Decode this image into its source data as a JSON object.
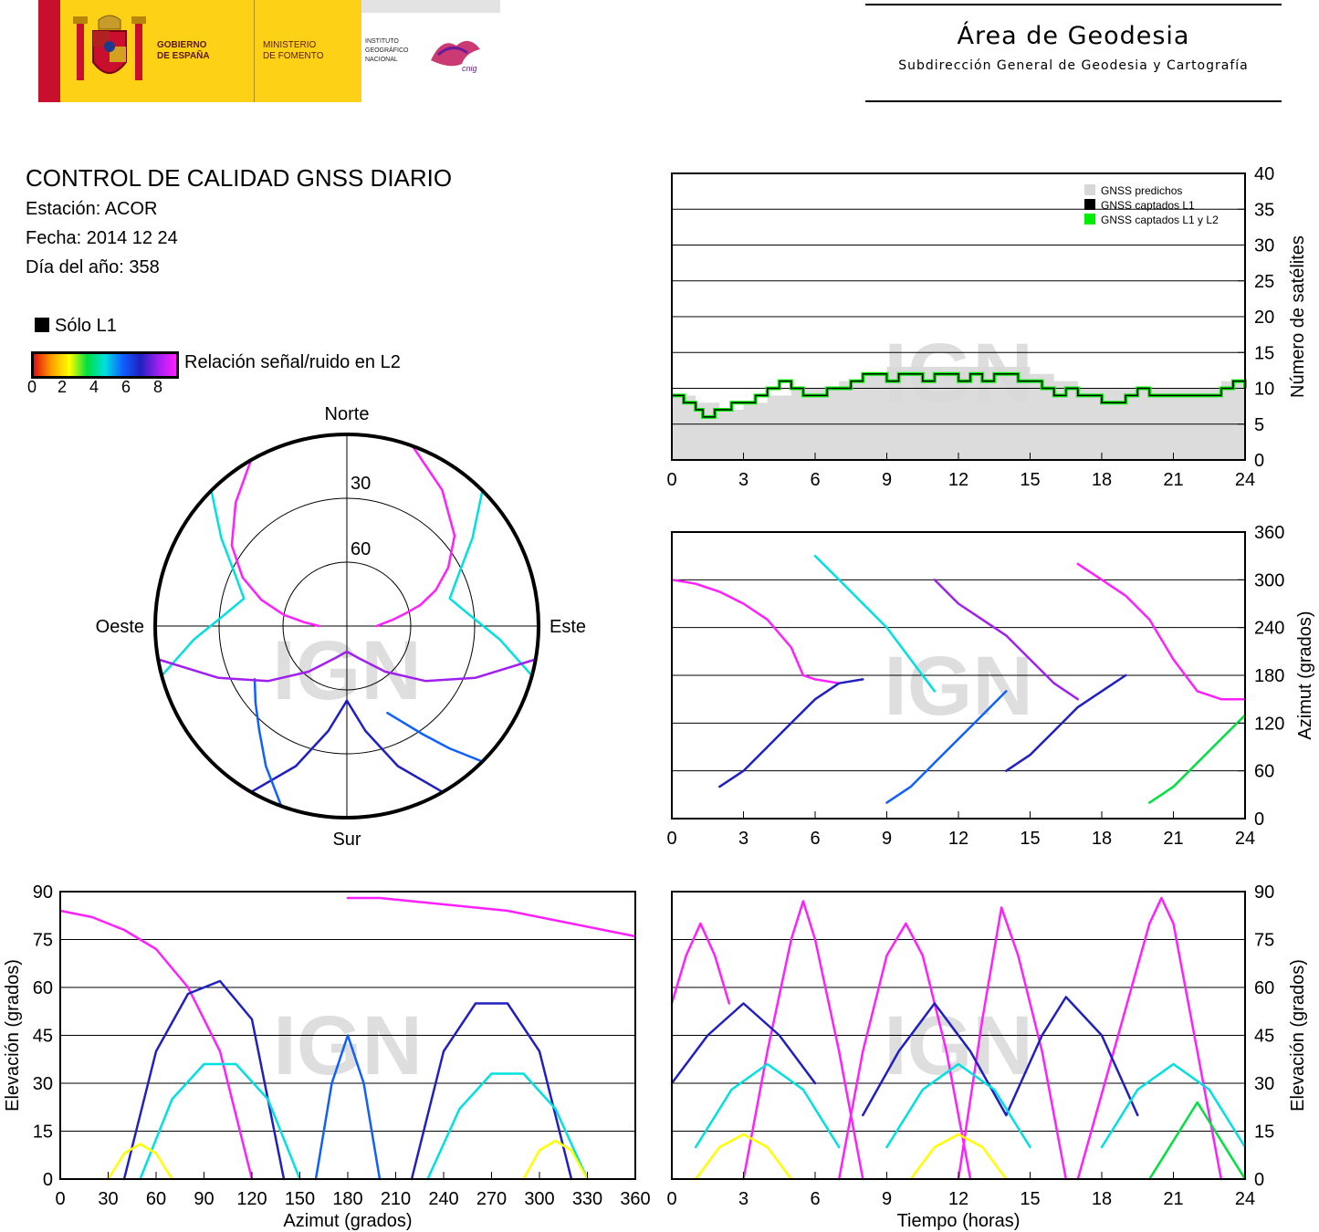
{
  "header": {
    "gov_line1": "GOBIERNO",
    "gov_line2": "DE ESPAÑA",
    "min_line1": "MINISTERIO",
    "min_line2": "DE FOMENTO",
    "ign_line1": "INSTITUTO",
    "ign_line2": "GEOGRÁFICO",
    "ign_line3": "NACIONAL",
    "cnig_logo": "cnig",
    "area_title": "Área de Geodesia",
    "area_subtitle": "Subdirección General de Geodesia y Cartografía"
  },
  "report": {
    "title": "CONTROL DE CALIDAD GNSS DIARIO",
    "station": "Estación: ACOR",
    "date": "Fecha: 2014 12 24",
    "doy": "Día del año: 358"
  },
  "legend": {
    "solo_l1": "Sólo L1",
    "snr_label": "Relación señal/ruido en L2",
    "snr_ticks": [
      "0",
      "2",
      "4",
      "6",
      "8"
    ],
    "snr_colors": [
      "#e01010",
      "#ffa000",
      "#ffff00",
      "#00e040",
      "#00e0e0",
      "#1060ff",
      "#2020c0",
      "#a020f0",
      "#ff20ff"
    ]
  },
  "watermark": "IGN",
  "chart_data": [
    {
      "id": "satellites",
      "type": "area",
      "ylabel": "Número de satélites",
      "x_ticks": [
        "0",
        "3",
        "6",
        "9",
        "12",
        "15",
        "18",
        "21",
        "24"
      ],
      "y_ticks": [
        "0",
        "5",
        "10",
        "15",
        "20",
        "25",
        "30",
        "35",
        "40"
      ],
      "xlim": [
        0,
        24
      ],
      "ylim": [
        0,
        40
      ],
      "grid": true,
      "legend_position": "top-right",
      "series": [
        {
          "name": "GNSS predichos",
          "color": "#d8d8d8",
          "x": [
            0,
            1,
            2,
            3,
            4,
            5,
            6,
            7,
            8,
            9,
            10,
            11,
            12,
            13,
            14,
            15,
            16,
            17,
            18,
            19,
            20,
            21,
            22,
            23,
            24
          ],
          "values": [
            9,
            8,
            7,
            8,
            9,
            10,
            10,
            11,
            12,
            13,
            13,
            13,
            13,
            13,
            13,
            12,
            11,
            10,
            10,
            10,
            10,
            10,
            10,
            11,
            10
          ]
        },
        {
          "name": "GNSS captados L1",
          "color": "#000000",
          "x": [
            0,
            0.5,
            1,
            1.3,
            1.8,
            2.5,
            3,
            3.5,
            4,
            4.5,
            5,
            5.5,
            6,
            6.5,
            7,
            7.5,
            8,
            8.5,
            9,
            9.5,
            10,
            10.5,
            11,
            11.5,
            12,
            12.5,
            13,
            13.5,
            14,
            14.5,
            15,
            15.5,
            16,
            16.5,
            17,
            17.5,
            18,
            18.5,
            19,
            19.5,
            20,
            20.5,
            21,
            21.5,
            22,
            22.5,
            23,
            23.5,
            24
          ],
          "values": [
            9,
            8,
            7,
            6,
            7,
            8,
            8,
            9,
            10,
            11,
            10,
            9,
            9,
            10,
            10,
            11,
            12,
            12,
            11,
            12,
            12,
            11,
            12,
            12,
            11,
            12,
            11,
            12,
            12,
            11,
            11,
            10,
            9,
            10,
            9,
            9,
            8,
            8,
            9,
            10,
            9,
            9,
            9,
            9,
            9,
            9,
            10,
            11,
            10
          ]
        },
        {
          "name": "GNSS captados L1 y L2",
          "color": "#00ee00",
          "x": [
            0,
            0.5,
            1,
            1.3,
            1.8,
            2.5,
            3,
            3.5,
            4,
            4.5,
            5,
            5.5,
            6,
            6.5,
            7,
            7.5,
            8,
            8.5,
            9,
            9.5,
            10,
            10.5,
            11,
            11.5,
            12,
            12.5,
            13,
            13.5,
            14,
            14.5,
            15,
            15.5,
            16,
            16.5,
            17,
            17.5,
            18,
            18.5,
            19,
            19.5,
            20,
            20.5,
            21,
            21.5,
            22,
            22.5,
            23,
            23.5,
            24
          ],
          "values": [
            9,
            8,
            7,
            6,
            7,
            8,
            8,
            9,
            10,
            11,
            10,
            9,
            9,
            10,
            10,
            11,
            12,
            12,
            11,
            12,
            12,
            11,
            12,
            12,
            11,
            12,
            11,
            12,
            12,
            11,
            11,
            10,
            9,
            10,
            9,
            9,
            8,
            8,
            9,
            10,
            9,
            9,
            9,
            9,
            9,
            9,
            10,
            11,
            10
          ]
        }
      ]
    },
    {
      "id": "skyplot",
      "type": "scatter",
      "directions": {
        "north": "Norte",
        "south": "Sur",
        "east": "Este",
        "west": "Oeste"
      },
      "ring_labels": [
        "30",
        "60"
      ],
      "rings_elevation": [
        30,
        60
      ],
      "tracks": [
        {
          "az": [
            20,
            35,
            50,
            60,
            68,
            74,
            78,
            82,
            86,
            90
          ],
          "el": [
            0,
            12,
            24,
            35,
            45,
            54,
            62,
            68,
            73,
            76
          ],
          "snr": 8
        },
        {
          "az": [
            330,
            318,
            305,
            295,
            287,
            280,
            275,
            270
          ],
          "el": [
            0,
            12,
            24,
            36,
            48,
            60,
            70,
            77
          ],
          "snr": 8
        },
        {
          "az": [
            150,
            160,
            170,
            180,
            190,
            200,
            210
          ],
          "el": [
            0,
            20,
            40,
            55,
            40,
            20,
            0
          ],
          "snr": 6
        },
        {
          "az": [
            135,
            140,
            145,
            150,
            155
          ],
          "el": [
            0,
            15,
            28,
            38,
            45
          ],
          "snr": 5
        },
        {
          "az": [
            200,
            210,
            220,
            230,
            240
          ],
          "el": [
            0,
            14,
            26,
            34,
            40
          ],
          "snr": 5
        },
        {
          "az": [
            45,
            55,
            65,
            75,
            85,
            95,
            105
          ],
          "el": [
            0,
            18,
            32,
            40,
            32,
            18,
            0
          ],
          "snr": 4
        },
        {
          "az": [
            255,
            265,
            275,
            285,
            295,
            305,
            315
          ],
          "el": [
            0,
            18,
            32,
            40,
            32,
            18,
            0
          ],
          "snr": 4
        },
        {
          "az": [
            100,
            112,
            125,
            140,
            160,
            180,
            200,
            220,
            235,
            248,
            260
          ],
          "el": [
            0,
            25,
            45,
            62,
            74,
            78,
            74,
            62,
            45,
            25,
            0
          ],
          "snr": 7
        }
      ]
    },
    {
      "id": "azimuth_time",
      "type": "scatter",
      "ylabel": "Azimut (grados)",
      "x_ticks": [
        "0",
        "3",
        "6",
        "9",
        "12",
        "15",
        "18",
        "21",
        "24"
      ],
      "y_ticks": [
        "0",
        "60",
        "120",
        "180",
        "240",
        "300",
        "360"
      ],
      "xlim": [
        0,
        24
      ],
      "ylim": [
        0,
        360
      ],
      "grid": true,
      "tracks": [
        {
          "t": [
            0,
            1,
            2,
            3,
            4,
            5,
            5.5,
            6,
            7
          ],
          "az": [
            300,
            295,
            285,
            270,
            250,
            215,
            180,
            175,
            170
          ],
          "snr": 8
        },
        {
          "t": [
            2,
            3,
            4,
            5,
            6,
            7,
            8
          ],
          "az": [
            40,
            60,
            90,
            120,
            150,
            170,
            175
          ],
          "snr": 6
        },
        {
          "t": [
            6,
            7,
            8,
            9,
            10,
            11
          ],
          "az": [
            330,
            300,
            270,
            240,
            200,
            160
          ],
          "snr": 4
        },
        {
          "t": [
            9,
            10,
            11,
            12,
            13,
            14
          ],
          "az": [
            20,
            40,
            70,
            100,
            130,
            160
          ],
          "snr": 5
        },
        {
          "t": [
            11,
            12,
            13,
            14,
            15,
            16,
            17
          ],
          "az": [
            300,
            270,
            250,
            230,
            200,
            170,
            150
          ],
          "snr": 7
        },
        {
          "t": [
            14,
            15,
            16,
            17,
            18,
            19
          ],
          "az": [
            60,
            80,
            110,
            140,
            160,
            180
          ],
          "snr": 6
        },
        {
          "t": [
            17,
            18,
            19,
            20,
            21,
            22,
            23,
            24
          ],
          "az": [
            320,
            300,
            280,
            250,
            200,
            160,
            150,
            150
          ],
          "snr": 8
        },
        {
          "t": [
            20,
            21,
            22,
            23,
            24
          ],
          "az": [
            20,
            40,
            70,
            100,
            130
          ],
          "snr": 3
        }
      ]
    },
    {
      "id": "elevation_azimuth",
      "type": "scatter",
      "xlabel": "Azimut (grados)",
      "ylabel": "Elevación (grados)",
      "x_ticks": [
        "0",
        "30",
        "60",
        "90",
        "120",
        "150",
        "180",
        "210",
        "240",
        "270",
        "300",
        "330",
        "360"
      ],
      "y_ticks": [
        "0",
        "15",
        "30",
        "45",
        "60",
        "75",
        "90"
      ],
      "xlim": [
        0,
        360
      ],
      "ylim": [
        0,
        90
      ],
      "grid": true,
      "tracks": [
        {
          "az": [
            0,
            20,
            40,
            60,
            80,
            100,
            120
          ],
          "el": [
            84,
            82,
            78,
            72,
            60,
            40,
            0
          ],
          "snr": 8
        },
        {
          "az": [
            180,
            200,
            220,
            240,
            260,
            280,
            300,
            320,
            340,
            360
          ],
          "el": [
            88,
            88,
            87,
            86,
            85,
            84,
            82,
            80,
            78,
            76
          ],
          "snr": 8
        },
        {
          "az": [
            40,
            60,
            80,
            100,
            120,
            140
          ],
          "el": [
            0,
            40,
            58,
            62,
            50,
            0
          ],
          "snr": 6
        },
        {
          "az": [
            220,
            240,
            260,
            280,
            300,
            320
          ],
          "el": [
            0,
            40,
            55,
            55,
            40,
            0
          ],
          "snr": 6
        },
        {
          "az": [
            50,
            70,
            90,
            110,
            130,
            150
          ],
          "el": [
            0,
            25,
            36,
            36,
            25,
            0
          ],
          "snr": 4
        },
        {
          "az": [
            230,
            250,
            270,
            290,
            310,
            330
          ],
          "el": [
            0,
            22,
            33,
            33,
            22,
            0
          ],
          "snr": 4
        },
        {
          "az": [
            30,
            40,
            50,
            60,
            70
          ],
          "el": [
            0,
            8,
            11,
            8,
            0
          ],
          "snr": 2
        },
        {
          "az": [
            290,
            300,
            310,
            320,
            330
          ],
          "el": [
            0,
            9,
            12,
            9,
            0
          ],
          "snr": 2
        },
        {
          "az": [
            160,
            170,
            180,
            190,
            200
          ],
          "el": [
            0,
            30,
            45,
            30,
            0
          ],
          "snr": 5
        }
      ]
    },
    {
      "id": "elevation_time",
      "type": "scatter",
      "xlabel": "Tiempo (horas)",
      "ylabel": "Elevación (grados)",
      "x_ticks": [
        "0",
        "3",
        "6",
        "9",
        "12",
        "15",
        "18",
        "21",
        "24"
      ],
      "y_ticks": [
        "0",
        "15",
        "30",
        "45",
        "60",
        "75",
        "90"
      ],
      "xlim": [
        0,
        24
      ],
      "ylim": [
        0,
        90
      ],
      "grid": true,
      "tracks": [
        {
          "t": [
            0,
            0.6,
            1.2,
            1.8,
            2.4
          ],
          "el": [
            55,
            70,
            80,
            70,
            55
          ],
          "snr": 8
        },
        {
          "t": [
            3,
            4,
            5,
            5.5,
            6,
            7,
            8
          ],
          "el": [
            0,
            40,
            75,
            87,
            75,
            40,
            0
          ],
          "snr": 8
        },
        {
          "t": [
            7,
            8,
            9,
            9.8,
            10.5,
            11.5,
            12.5
          ],
          "el": [
            0,
            40,
            70,
            80,
            70,
            40,
            0
          ],
          "snr": 8
        },
        {
          "t": [
            12,
            13,
            13.8,
            14.5,
            15.5,
            16.5
          ],
          "el": [
            0,
            50,
            85,
            70,
            40,
            0
          ],
          "snr": 8
        },
        {
          "t": [
            17,
            18.5,
            20,
            20.5,
            21,
            22,
            23
          ],
          "el": [
            0,
            40,
            80,
            88,
            80,
            40,
            0
          ],
          "snr": 8
        },
        {
          "t": [
            0,
            1.5,
            3,
            4.5,
            6
          ],
          "el": [
            30,
            45,
            55,
            45,
            30
          ],
          "snr": 6
        },
        {
          "t": [
            8,
            9.5,
            11,
            12.5,
            14
          ],
          "el": [
            20,
            40,
            55,
            40,
            20
          ],
          "snr": 6
        },
        {
          "t": [
            14,
            15.5,
            16.5,
            18,
            19.5
          ],
          "el": [
            20,
            45,
            57,
            45,
            20
          ],
          "snr": 6
        },
        {
          "t": [
            1,
            2.5,
            4,
            5.5,
            7
          ],
          "el": [
            10,
            28,
            36,
            28,
            10
          ],
          "snr": 4
        },
        {
          "t": [
            9,
            10.5,
            12,
            13.5,
            15
          ],
          "el": [
            10,
            28,
            36,
            28,
            10
          ],
          "snr": 4
        },
        {
          "t": [
            18,
            19.5,
            21,
            22.5,
            24
          ],
          "el": [
            10,
            28,
            36,
            28,
            10
          ],
          "snr": 4
        },
        {
          "t": [
            1,
            2,
            3,
            4,
            5
          ],
          "el": [
            0,
            10,
            14,
            10,
            0
          ],
          "snr": 2
        },
        {
          "t": [
            10,
            11,
            12,
            13,
            14
          ],
          "el": [
            0,
            10,
            14,
            10,
            0
          ],
          "snr": 2
        },
        {
          "t": [
            20,
            21,
            22,
            23,
            24
          ],
          "el": [
            0,
            12,
            24,
            12,
            0
          ],
          "snr": 3
        }
      ]
    }
  ]
}
